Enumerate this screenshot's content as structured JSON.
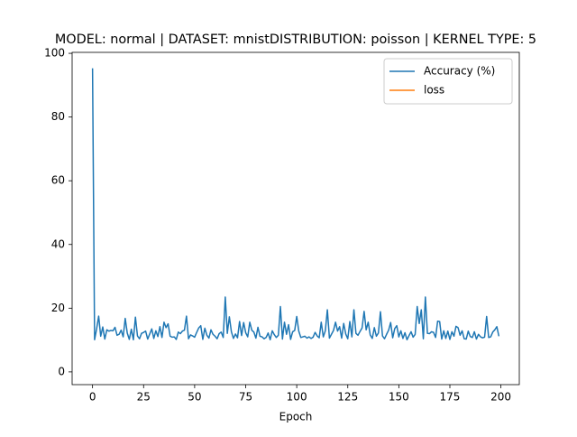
{
  "chart_data": {
    "type": "line",
    "title": "MODEL: normal | DATASET: mnistDISTRIBUTION: poisson | KERNEL TYPE: 5",
    "x_label": "Epoch",
    "x": [
      0,
      1,
      2,
      3,
      4,
      5,
      6,
      7,
      8,
      9,
      10,
      11,
      12,
      13,
      14,
      15,
      16,
      17,
      18,
      19,
      20,
      21,
      22,
      23,
      24,
      25,
      26,
      27,
      28,
      29,
      30,
      31,
      32,
      33,
      34,
      35,
      36,
      37,
      38,
      39,
      40,
      41,
      42,
      43,
      44,
      45,
      46,
      47,
      48,
      49,
      50,
      51,
      52,
      53,
      54,
      55,
      56,
      57,
      58,
      59,
      60,
      61,
      62,
      63,
      64,
      65,
      66,
      67,
      68,
      69,
      70,
      71,
      72,
      73,
      74,
      75,
      76,
      77,
      78,
      79,
      80,
      81,
      82,
      83,
      84,
      85,
      86,
      87,
      88,
      89,
      90,
      91,
      92,
      93,
      94,
      95,
      96,
      97,
      98,
      99,
      100,
      101,
      102,
      103,
      104,
      105,
      106,
      107,
      108,
      109,
      110,
      111,
      112,
      113,
      114,
      115,
      116,
      117,
      118,
      119,
      120,
      121,
      122,
      123,
      124,
      125,
      126,
      127,
      128,
      129,
      130,
      131,
      132,
      133,
      134,
      135,
      136,
      137,
      138,
      139,
      140,
      141,
      142,
      143,
      144,
      145,
      146,
      147,
      148,
      149,
      150,
      151,
      152,
      153,
      154,
      155,
      156,
      157,
      158,
      159,
      160,
      161,
      162,
      163,
      164,
      165,
      166,
      167,
      168,
      169,
      170,
      171,
      172,
      173,
      174,
      175,
      176,
      177,
      178,
      179,
      180,
      181,
      182,
      183,
      184,
      185,
      186,
      187,
      188,
      189,
      190,
      191,
      192,
      193,
      194,
      195,
      196,
      197,
      198,
      199
    ],
    "series": [
      {
        "name": "Accuracy (%)",
        "color": "#1f77b4",
        "values": [
          95.3,
          10.1,
          13.5,
          17.5,
          11.2,
          14.1,
          10.3,
          13.2,
          12.8,
          13.0,
          12.9,
          14.0,
          11.5,
          11.8,
          13.1,
          11.0,
          16.8,
          12.2,
          10.2,
          13.4,
          10.1,
          17.2,
          11.3,
          10.4,
          12.1,
          12.4,
          12.8,
          10.3,
          11.9,
          13.5,
          10.5,
          12.9,
          11.1,
          14.2,
          10.8,
          15.6,
          13.9,
          15.1,
          11.2,
          10.9,
          11.0,
          10.2,
          12.5,
          12.0,
          12.8,
          13.1,
          17.5,
          10.4,
          11.6,
          11.3,
          10.9,
          12.4,
          13.8,
          14.5,
          10.2,
          13.7,
          11.5,
          10.6,
          13.2,
          11.8,
          11.2,
          10.4,
          12.0,
          12.5,
          10.8,
          23.5,
          12.1,
          17.3,
          12.6,
          10.5,
          11.9,
          10.7,
          15.8,
          11.4,
          15.5,
          12.3,
          11.0,
          15.6,
          13.1,
          12.5,
          10.6,
          14.0,
          11.2,
          11.0,
          10.4,
          10.8,
          12.2,
          10.1,
          12.9,
          11.7,
          10.8,
          11.5,
          20.5,
          10.3,
          15.6,
          11.8,
          14.8,
          10.2,
          12.6,
          13.0,
          17.4,
          12.8,
          10.8,
          11.0,
          11.2,
          10.6,
          11.0,
          10.5,
          10.9,
          12.4,
          11.3,
          10.7,
          15.6,
          11.0,
          12.9,
          19.5,
          10.6,
          11.8,
          13.0,
          15.6,
          12.8,
          14.2,
          10.6,
          15.2,
          11.9,
          10.4,
          15.8,
          11.0,
          19.5,
          12.1,
          11.5,
          12.7,
          13.8,
          19.0,
          13.2,
          15.6,
          11.6,
          10.5,
          13.9,
          11.2,
          12.2,
          18.9,
          11.3,
          10.4,
          11.8,
          13.1,
          15.5,
          10.7,
          13.6,
          14.5,
          11.0,
          12.9,
          10.5,
          12.3,
          10.1,
          11.4,
          12.6,
          10.9,
          11.8,
          20.5,
          15.2,
          19.5,
          10.4,
          23.5,
          12.1,
          12.0,
          12.6,
          12.4,
          10.8,
          15.9,
          15.8,
          10.3,
          12.9,
          10.5,
          12.8,
          10.2,
          12.6,
          11.2,
          14.3,
          13.9,
          11.5,
          12.9,
          10.4,
          10.3,
          12.8,
          11.1,
          10.8,
          12.6,
          10.3,
          11.8,
          11.0,
          10.7,
          10.9,
          17.4,
          10.8,
          11.0,
          12.5,
          13.2,
          14.2,
          11.2
        ]
      },
      {
        "name": "loss",
        "color": "#ff7f0e",
        "values": [
          null,
          null,
          null,
          null,
          null,
          null,
          null,
          null,
          null,
          null,
          null,
          null,
          null,
          null,
          null,
          null,
          null,
          null,
          null,
          null,
          null,
          null,
          null,
          null,
          null,
          null,
          null,
          null,
          null,
          null,
          null,
          null,
          null,
          null,
          null,
          null,
          null,
          null,
          null,
          null,
          null,
          null,
          null,
          null,
          null,
          null,
          null,
          null,
          null,
          null,
          null,
          null,
          null,
          null,
          null,
          null,
          null,
          null,
          null,
          null,
          null,
          null,
          null,
          null,
          null,
          null,
          null,
          null,
          null,
          null,
          null,
          null,
          null,
          null,
          null,
          null,
          null,
          null,
          null,
          null,
          null,
          null,
          null,
          null,
          null,
          null,
          null,
          null,
          null,
          null,
          null,
          null,
          null,
          null,
          null,
          null,
          null,
          null,
          null,
          null,
          null,
          null,
          null,
          null,
          null,
          null,
          null,
          null,
          null,
          null,
          null,
          null,
          null,
          null,
          null,
          null,
          null,
          null,
          null,
          null,
          null,
          null,
          null,
          null,
          null,
          null,
          null,
          null,
          null,
          null,
          null,
          null,
          null,
          null,
          null,
          null,
          null,
          null,
          null,
          null,
          null,
          null,
          null,
          null,
          null,
          null,
          null,
          null,
          null,
          null,
          null,
          null,
          null,
          null,
          null,
          null,
          null,
          null,
          null,
          null,
          null,
          null,
          null,
          null,
          null,
          null,
          null,
          null,
          null,
          null,
          null,
          null,
          null,
          null,
          null,
          null,
          null,
          null,
          null,
          null,
          null,
          null,
          null,
          null,
          null,
          null,
          null,
          null,
          null,
          null,
          null,
          null,
          null,
          null,
          null,
          null,
          null,
          null,
          null,
          null
        ]
      }
    ],
    "xlim": [
      -10,
      209
    ],
    "ylim": [
      -4,
      100.3
    ],
    "xticks": [
      0,
      25,
      50,
      75,
      100,
      125,
      150,
      175,
      200
    ],
    "yticks": [
      0,
      20,
      40,
      60,
      80,
      100
    ],
    "legend": "upper right"
  }
}
